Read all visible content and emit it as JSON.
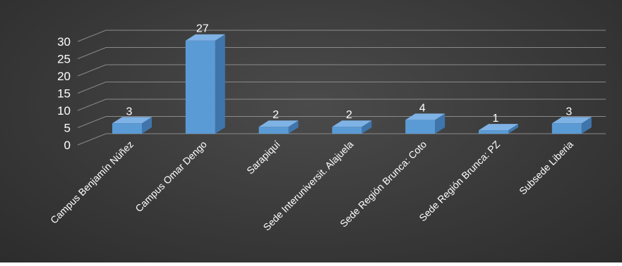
{
  "chart_data": {
    "type": "bar",
    "title": "",
    "xlabel": "",
    "ylabel": "",
    "categories": [
      "Campus Benjamín Núñez",
      "Campus Omar Dengo",
      "Sarapiquí",
      "Sede Interuniversit. Alajuela",
      "Sede Región Brunca: Coto",
      "Sede Región Brunca: PZ",
      "Subsede Liberia"
    ],
    "values": [
      3,
      27,
      2,
      2,
      4,
      1,
      3
    ],
    "ylim": [
      0,
      30
    ],
    "yticks": [
      0,
      5,
      10,
      15,
      20,
      25,
      30
    ],
    "grid": true,
    "legend": "none",
    "style": "3d-column",
    "colors": {
      "bar_front": "#5b9bd5",
      "bar_top": "#7fb2e5",
      "bar_side": "#3f75ab",
      "grid": "#8a8a8a",
      "text": "#ffffff",
      "background": "#3c3c3c"
    }
  }
}
